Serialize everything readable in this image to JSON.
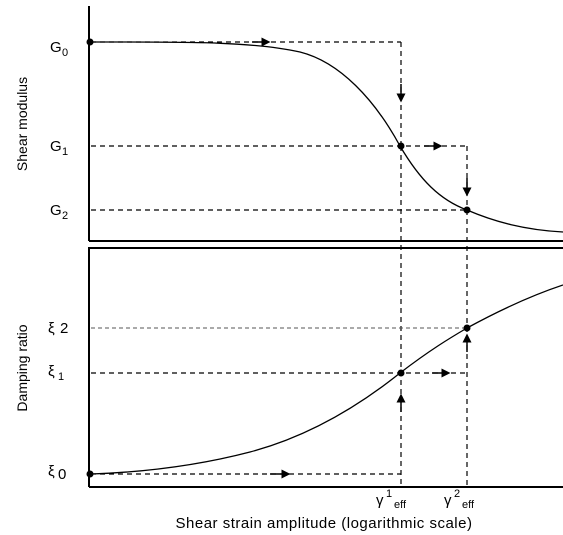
{
  "top_panel": {
    "y_axis_label": "Shear modulus",
    "levels": [
      {
        "symbol": "G",
        "subscript": "0"
      },
      {
        "symbol": "G",
        "subscript": "1"
      },
      {
        "symbol": "G",
        "subscript": "2"
      }
    ]
  },
  "bottom_panel": {
    "y_axis_label": "Damping ratio",
    "levels": [
      {
        "symbol": "ξ",
        "subscript": "2"
      },
      {
        "symbol": "ξ",
        "subscript": "1"
      },
      {
        "symbol": "ξ",
        "subscript": "0"
      }
    ]
  },
  "strain_marks": [
    {
      "symbol": "γ",
      "superscript": "1",
      "subscript": "eff"
    },
    {
      "symbol": "γ",
      "superscript": "2",
      "subscript": "eff"
    }
  ],
  "x_axis_label": "Shear strain amplitude (logarithmic scale)"
}
